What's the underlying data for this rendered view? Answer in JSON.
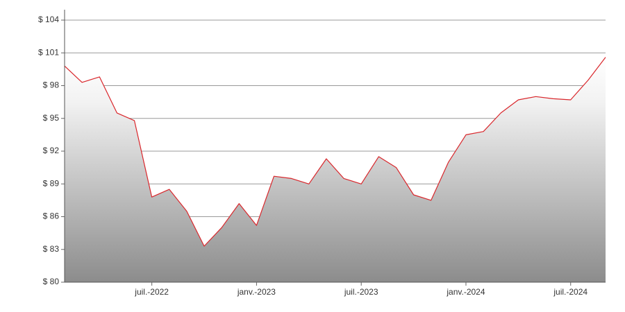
{
  "chart_data": {
    "type": "line",
    "area": true,
    "color": "#d9262b",
    "x": [
      "2022-02",
      "2022-03",
      "2022-04",
      "2022-05",
      "2022-06",
      "2022-07",
      "2022-08",
      "2022-09",
      "2022-10",
      "2022-11",
      "2022-12",
      "2023-01",
      "2023-02",
      "2023-03",
      "2023-04",
      "2023-05",
      "2023-06",
      "2023-07",
      "2023-08",
      "2023-09",
      "2023-10",
      "2023-11",
      "2023-12",
      "2024-01",
      "2024-02",
      "2024-03",
      "2024-04",
      "2024-05",
      "2024-06",
      "2024-07",
      "2024-08",
      "2024-09"
    ],
    "values": [
      99.8,
      98.3,
      98.8,
      95.5,
      94.8,
      87.8,
      88.5,
      86.5,
      83.3,
      85,
      87.2,
      85.2,
      89.7,
      89.5,
      89,
      91.3,
      89.5,
      89,
      91.5,
      90.5,
      88,
      87.5,
      91,
      93.5,
      93.8,
      95.5,
      96.7,
      97,
      96.8,
      96.7,
      98.5,
      100.6
    ],
    "xlim": [
      "2022-02",
      "2024-09"
    ],
    "xticks": [
      {
        "value": "2022-07",
        "label": "juil.-2022"
      },
      {
        "value": "2023-01",
        "label": "janv.-2023"
      },
      {
        "value": "2023-07",
        "label": "juil.-2023"
      },
      {
        "value": "2024-01",
        "label": "janv.-2024"
      },
      {
        "value": "2024-07",
        "label": "juil.-2024"
      }
    ],
    "ylim": [
      80,
      104
    ],
    "yticks": [
      {
        "value": 80,
        "label": "$ 80"
      },
      {
        "value": 83,
        "label": "$ 83"
      },
      {
        "value": 86,
        "label": "$ 86"
      },
      {
        "value": 89,
        "label": "$ 89"
      },
      {
        "value": 92,
        "label": "$ 92"
      },
      {
        "value": 95,
        "label": "$ 95"
      },
      {
        "value": 98,
        "label": "$ 98"
      },
      {
        "value": 101,
        "label": "$ 101"
      },
      {
        "value": 104,
        "label": "$ 104"
      }
    ],
    "grid": true
  }
}
